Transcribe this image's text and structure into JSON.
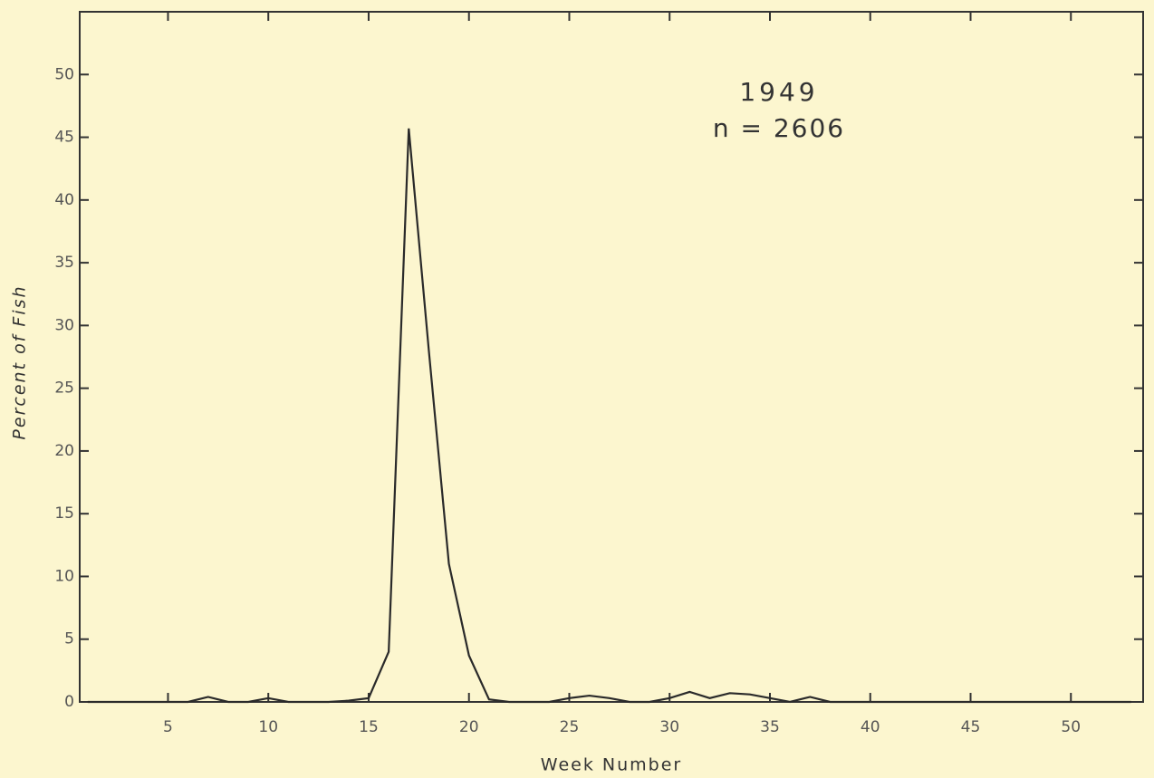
{
  "chart_data": {
    "type": "line",
    "annotations": [
      "1949",
      "n = 2606"
    ],
    "x_label": "Week Number",
    "y_label": "Percent of Fish",
    "x": [
      1,
      2,
      3,
      4,
      5,
      6,
      7,
      8,
      9,
      10,
      11,
      12,
      13,
      14,
      15,
      16,
      17,
      18,
      19,
      20,
      21,
      22,
      23,
      24,
      25,
      26,
      27,
      28,
      29,
      30,
      31,
      32,
      33,
      34,
      35,
      36,
      37,
      38,
      39,
      40,
      41,
      42,
      43,
      44,
      45,
      46,
      47,
      48,
      49,
      50,
      51,
      52,
      53
    ],
    "series": [
      {
        "color": "#2a2a2a",
        "values": [
          0,
          0,
          0,
          0,
          0,
          0,
          0.4,
          0,
          0,
          0.3,
          0,
          0,
          0,
          0.1,
          0.3,
          4,
          45.7,
          28,
          11,
          3.7,
          0.2,
          0,
          0,
          0,
          0.3,
          0.5,
          0.3,
          0,
          0,
          0.3,
          0.8,
          0.3,
          0.7,
          0.6,
          0.3,
          0,
          0.4,
          0,
          0,
          0,
          0,
          0,
          0,
          0,
          0,
          0,
          0,
          0,
          0,
          0,
          0,
          0,
          0
        ]
      }
    ],
    "xlim": [
      0.6,
      53.6
    ],
    "xticks": [
      5,
      10,
      15,
      20,
      25,
      30,
      35,
      40,
      45,
      50
    ],
    "ylim": [
      0,
      55
    ],
    "yticks": [
      0,
      5,
      10,
      15,
      20,
      25,
      30,
      35,
      40,
      45,
      50
    ],
    "grid": false
  }
}
